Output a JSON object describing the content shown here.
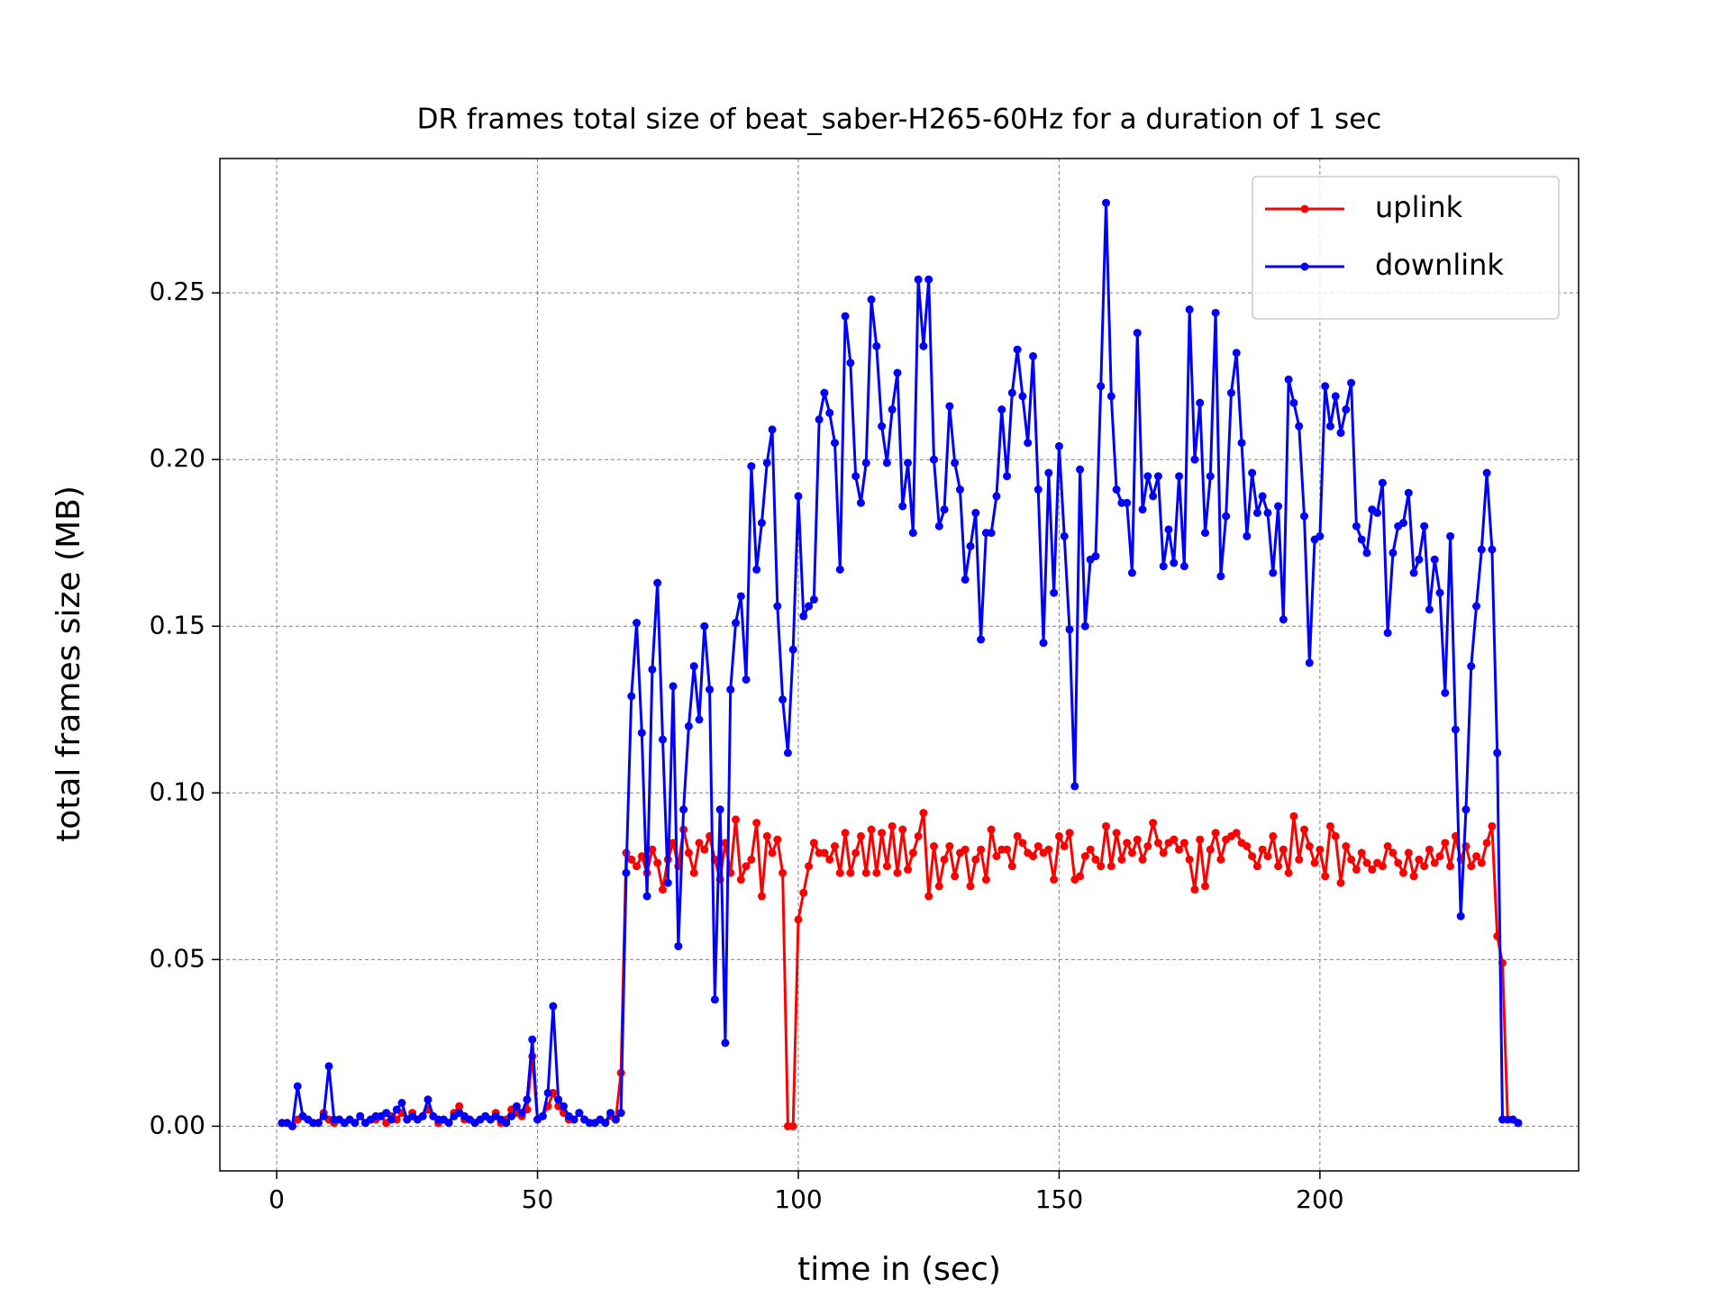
{
  "chart_data": {
    "type": "line",
    "title": "DR frames total size of beat_saber-H265-60Hz for a duration of 1 sec",
    "x_label": "time in (sec)",
    "y_label": "total frames size (MB)",
    "xlim": [
      -10.9,
      249.6
    ],
    "ylim": [
      -0.0134,
      0.2903
    ],
    "xticks": [
      0,
      50,
      100,
      150,
      200
    ],
    "yticks": [
      {
        "value": 0,
        "label": "0.00"
      },
      0.05,
      {
        "value": 0.1,
        "label": "0.10"
      },
      0.15,
      {
        "value": 0.2,
        "label": "0.20"
      },
      0.25
    ],
    "grid": true,
    "legend": "upper right",
    "x": [
      1,
      2,
      3,
      4,
      5,
      6,
      7,
      8,
      9,
      10,
      11,
      12,
      13,
      14,
      15,
      16,
      17,
      18,
      19,
      20,
      21,
      22,
      23,
      24,
      25,
      26,
      27,
      28,
      29,
      30,
      31,
      32,
      33,
      34,
      35,
      36,
      37,
      38,
      39,
      40,
      41,
      42,
      43,
      44,
      45,
      46,
      47,
      48,
      49,
      50,
      51,
      52,
      53,
      54,
      55,
      56,
      57,
      58,
      59,
      60,
      61,
      62,
      63,
      64,
      65,
      66,
      67,
      68,
      69,
      70,
      71,
      72,
      73,
      74,
      75,
      76,
      77,
      78,
      79,
      80,
      81,
      82,
      83,
      84,
      85,
      86,
      87,
      88,
      89,
      90,
      91,
      92,
      93,
      94,
      95,
      96,
      97,
      98,
      99,
      100,
      101,
      102,
      103,
      104,
      105,
      106,
      107,
      108,
      109,
      110,
      111,
      112,
      113,
      114,
      115,
      116,
      117,
      118,
      119,
      120,
      121,
      122,
      123,
      124,
      125,
      126,
      127,
      128,
      129,
      130,
      131,
      132,
      133,
      134,
      135,
      136,
      137,
      138,
      139,
      140,
      141,
      142,
      143,
      144,
      145,
      146,
      147,
      148,
      149,
      150,
      151,
      152,
      153,
      154,
      155,
      156,
      157,
      158,
      159,
      160,
      161,
      162,
      163,
      164,
      165,
      166,
      167,
      168,
      169,
      170,
      171,
      172,
      173,
      174,
      175,
      176,
      177,
      178,
      179,
      180,
      181,
      182,
      183,
      184,
      185,
      186,
      187,
      188,
      189,
      190,
      191,
      192,
      193,
      194,
      195,
      196,
      197,
      198,
      199,
      200,
      201,
      202,
      203,
      204,
      205,
      206,
      207,
      208,
      209,
      210,
      211,
      212,
      213,
      214,
      215,
      216,
      217,
      218,
      219,
      220,
      221,
      222,
      223,
      224,
      225,
      226,
      227,
      228,
      229,
      230,
      231,
      232,
      233,
      234,
      235,
      236,
      237,
      238
    ],
    "series": [
      {
        "name": "uplink",
        "color": "#ff0000",
        "values": [
          0.001,
          0.001,
          0.0,
          0.002,
          0.003,
          0.002,
          0.001,
          0.001,
          0.004,
          0.002,
          0.001,
          0.002,
          0.001,
          0.002,
          0.001,
          0.003,
          0.001,
          0.002,
          0.002,
          0.003,
          0.001,
          0.003,
          0.002,
          0.004,
          0.002,
          0.004,
          0.002,
          0.003,
          0.005,
          0.003,
          0.001,
          0.002,
          0.001,
          0.004,
          0.006,
          0.002,
          0.002,
          0.001,
          0.002,
          0.003,
          0.002,
          0.004,
          0.001,
          0.002,
          0.005,
          0.004,
          0.003,
          0.005,
          0.021,
          0.002,
          0.003,
          0.006,
          0.01,
          0.006,
          0.004,
          0.002,
          0.002,
          0.004,
          0.002,
          0.001,
          0.001,
          0.002,
          0.001,
          0.003,
          0.002,
          0.016,
          0.082,
          0.08,
          0.078,
          0.081,
          0.076,
          0.083,
          0.079,
          0.071,
          0.08,
          0.085,
          0.078,
          0.089,
          0.082,
          0.076,
          0.085,
          0.083,
          0.087,
          0.08,
          0.074,
          0.085,
          0.076,
          0.092,
          0.074,
          0.078,
          0.08,
          0.091,
          0.069,
          0.087,
          0.082,
          0.086,
          0.076,
          0.0,
          0.0,
          0.062,
          0.07,
          0.078,
          0.085,
          0.082,
          0.082,
          0.08,
          0.084,
          0.076,
          0.088,
          0.076,
          0.082,
          0.087,
          0.076,
          0.089,
          0.076,
          0.088,
          0.078,
          0.09,
          0.076,
          0.089,
          0.077,
          0.082,
          0.087,
          0.094,
          0.069,
          0.084,
          0.072,
          0.08,
          0.084,
          0.075,
          0.082,
          0.083,
          0.072,
          0.08,
          0.083,
          0.074,
          0.089,
          0.081,
          0.083,
          0.083,
          0.078,
          0.087,
          0.085,
          0.082,
          0.081,
          0.084,
          0.082,
          0.083,
          0.074,
          0.087,
          0.084,
          0.088,
          0.074,
          0.075,
          0.081,
          0.083,
          0.08,
          0.078,
          0.09,
          0.078,
          0.088,
          0.08,
          0.085,
          0.082,
          0.086,
          0.08,
          0.084,
          0.091,
          0.085,
          0.082,
          0.085,
          0.086,
          0.083,
          0.085,
          0.08,
          0.071,
          0.086,
          0.072,
          0.083,
          0.088,
          0.08,
          0.086,
          0.087,
          0.088,
          0.085,
          0.084,
          0.081,
          0.078,
          0.083,
          0.081,
          0.087,
          0.078,
          0.083,
          0.076,
          0.093,
          0.08,
          0.089,
          0.084,
          0.079,
          0.083,
          0.075,
          0.09,
          0.087,
          0.073,
          0.084,
          0.08,
          0.077,
          0.082,
          0.079,
          0.077,
          0.079,
          0.078,
          0.084,
          0.082,
          0.079,
          0.076,
          0.082,
          0.075,
          0.08,
          0.078,
          0.083,
          0.079,
          0.081,
          0.085,
          0.078,
          0.087,
          0.08,
          0.084,
          0.078,
          0.081,
          0.079,
          0.085,
          0.09,
          0.057,
          0.049,
          0.002,
          0.002,
          0.001
        ]
      },
      {
        "name": "downlink",
        "color": "#0000ff",
        "values": [
          0.001,
          0.001,
          0.0,
          0.012,
          0.003,
          0.002,
          0.001,
          0.001,
          0.003,
          0.018,
          0.002,
          0.002,
          0.001,
          0.002,
          0.001,
          0.003,
          0.001,
          0.002,
          0.003,
          0.003,
          0.004,
          0.002,
          0.005,
          0.007,
          0.002,
          0.003,
          0.002,
          0.003,
          0.008,
          0.003,
          0.002,
          0.002,
          0.001,
          0.003,
          0.004,
          0.003,
          0.002,
          0.001,
          0.002,
          0.003,
          0.002,
          0.003,
          0.002,
          0.001,
          0.003,
          0.006,
          0.004,
          0.008,
          0.026,
          0.002,
          0.003,
          0.01,
          0.036,
          0.008,
          0.006,
          0.003,
          0.002,
          0.004,
          0.002,
          0.001,
          0.001,
          0.002,
          0.001,
          0.004,
          0.002,
          0.004,
          0.076,
          0.129,
          0.151,
          0.118,
          0.069,
          0.137,
          0.163,
          0.116,
          0.073,
          0.132,
          0.054,
          0.095,
          0.12,
          0.138,
          0.122,
          0.15,
          0.131,
          0.038,
          0.095,
          0.025,
          0.131,
          0.151,
          0.159,
          0.134,
          0.198,
          0.167,
          0.181,
          0.199,
          0.209,
          0.156,
          0.128,
          0.112,
          0.143,
          0.189,
          0.153,
          0.156,
          0.158,
          0.212,
          0.22,
          0.214,
          0.205,
          0.167,
          0.243,
          0.229,
          0.195,
          0.187,
          0.199,
          0.248,
          0.234,
          0.21,
          0.199,
          0.215,
          0.226,
          0.186,
          0.199,
          0.178,
          0.254,
          0.234,
          0.254,
          0.2,
          0.18,
          0.185,
          0.216,
          0.199,
          0.191,
          0.164,
          0.174,
          0.184,
          0.146,
          0.178,
          0.178,
          0.189,
          0.215,
          0.195,
          0.22,
          0.233,
          0.219,
          0.205,
          0.231,
          0.191,
          0.145,
          0.196,
          0.16,
          0.204,
          0.177,
          0.149,
          0.102,
          0.197,
          0.15,
          0.17,
          0.171,
          0.222,
          0.277,
          0.219,
          0.191,
          0.187,
          0.187,
          0.166,
          0.238,
          0.185,
          0.195,
          0.189,
          0.195,
          0.168,
          0.179,
          0.169,
          0.195,
          0.168,
          0.245,
          0.2,
          0.217,
          0.178,
          0.195,
          0.244,
          0.165,
          0.183,
          0.22,
          0.232,
          0.205,
          0.177,
          0.196,
          0.184,
          0.189,
          0.184,
          0.166,
          0.186,
          0.152,
          0.224,
          0.217,
          0.21,
          0.183,
          0.139,
          0.176,
          0.177,
          0.222,
          0.21,
          0.219,
          0.208,
          0.215,
          0.223,
          0.18,
          0.176,
          0.172,
          0.185,
          0.184,
          0.193,
          0.148,
          0.172,
          0.18,
          0.181,
          0.19,
          0.166,
          0.17,
          0.18,
          0.155,
          0.17,
          0.16,
          0.13,
          0.177,
          0.119,
          0.063,
          0.095,
          0.138,
          0.156,
          0.173,
          0.196,
          0.173,
          0.112,
          0.002,
          0.002,
          0.002,
          0.001
        ]
      }
    ]
  }
}
